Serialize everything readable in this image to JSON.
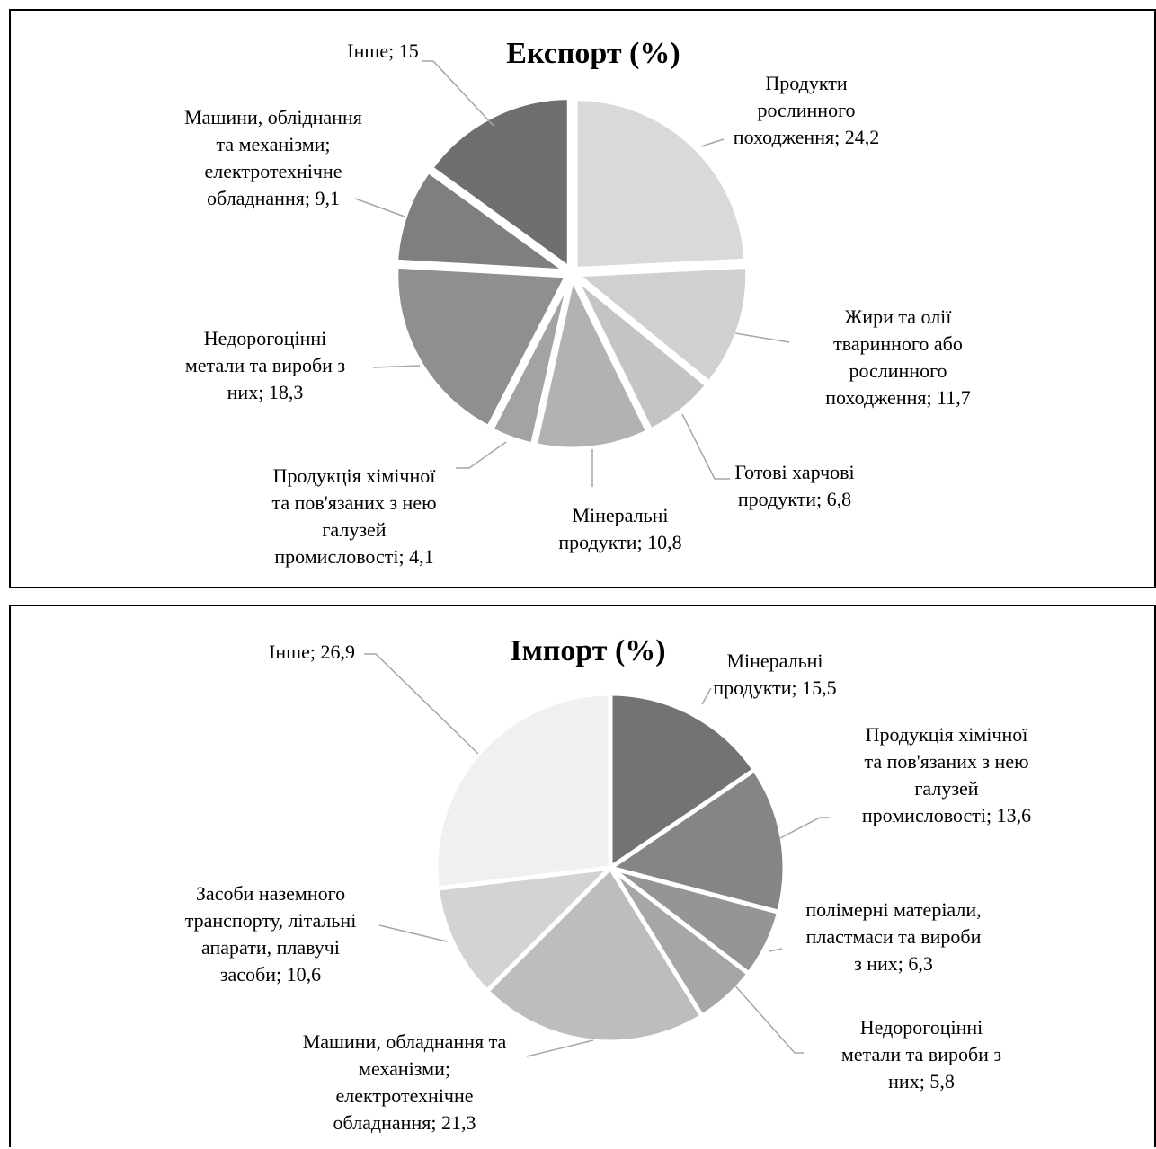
{
  "chart_data": [
    {
      "type": "pie",
      "title": "Експорт (%)",
      "slices": [
        {
          "label": [
            "Продукти",
            "рослинного",
            "походження; 24,2"
          ],
          "value": 24.2,
          "color": "#d9d9d9"
        },
        {
          "label": [
            "Жири та олії",
            "тваринного або",
            "рослинного",
            "походження; 11,7"
          ],
          "value": 11.7,
          "color": "#d0d0d0"
        },
        {
          "label": [
            "Готові харчові",
            "продукти; 6,8"
          ],
          "value": 6.8,
          "color": "#c4c4c4"
        },
        {
          "label": [
            "Мінеральні",
            "продукти; 10,8"
          ],
          "value": 10.8,
          "color": "#b2b2b2"
        },
        {
          "label": [
            "Продукція хімічної",
            "та пов'язаних з нею",
            "галузей",
            "промисловості; 4,1"
          ],
          "value": 4.1,
          "color": "#a3a3a3"
        },
        {
          "label": [
            "Недорогоцінні",
            "метали та вироби з",
            "них; 18,3"
          ],
          "value": 18.3,
          "color": "#8f8f8f"
        },
        {
          "label": [
            "Машини, обліднання",
            "та механізми;",
            "електротехнічне",
            "обладнання; 9,1"
          ],
          "value": 9.1,
          "color": "#7f7f7f"
        },
        {
          "label": [
            "Інше; 15"
          ],
          "value": 15,
          "color": "#6f6f6f"
        }
      ]
    },
    {
      "type": "pie",
      "title": "Імпорт (%)",
      "slices": [
        {
          "label": [
            "Мінеральні",
            "продукти; 15,5"
          ],
          "value": 15.5,
          "color": "#737373"
        },
        {
          "label": [
            "Продукція хімічної",
            "та пов'язаних з нею",
            "галузей",
            "промисловості; 13,6"
          ],
          "value": 13.6,
          "color": "#858585"
        },
        {
          "label": [
            "полімерні матеріали,",
            "пластмаси та вироби",
            "з них; 6,3"
          ],
          "value": 6.3,
          "color": "#959595"
        },
        {
          "label": [
            "Недорогоцінні",
            "метали та вироби з",
            "них; 5,8"
          ],
          "value": 5.8,
          "color": "#a6a6a6"
        },
        {
          "label": [
            "Машини, обладнання та",
            "механізми;",
            "електротехнічне",
            "обладнання; 21,3"
          ],
          "value": 21.3,
          "color": "#bdbdbd"
        },
        {
          "label": [
            "Засоби наземного",
            "транспорту, літальні",
            "апарати, плавучі",
            "засоби; 10,6"
          ],
          "value": 10.6,
          "color": "#d3d3d3"
        },
        {
          "label": [
            "Інше; 26,9"
          ],
          "value": 26.9,
          "color": "#f0f0f0"
        }
      ]
    }
  ]
}
